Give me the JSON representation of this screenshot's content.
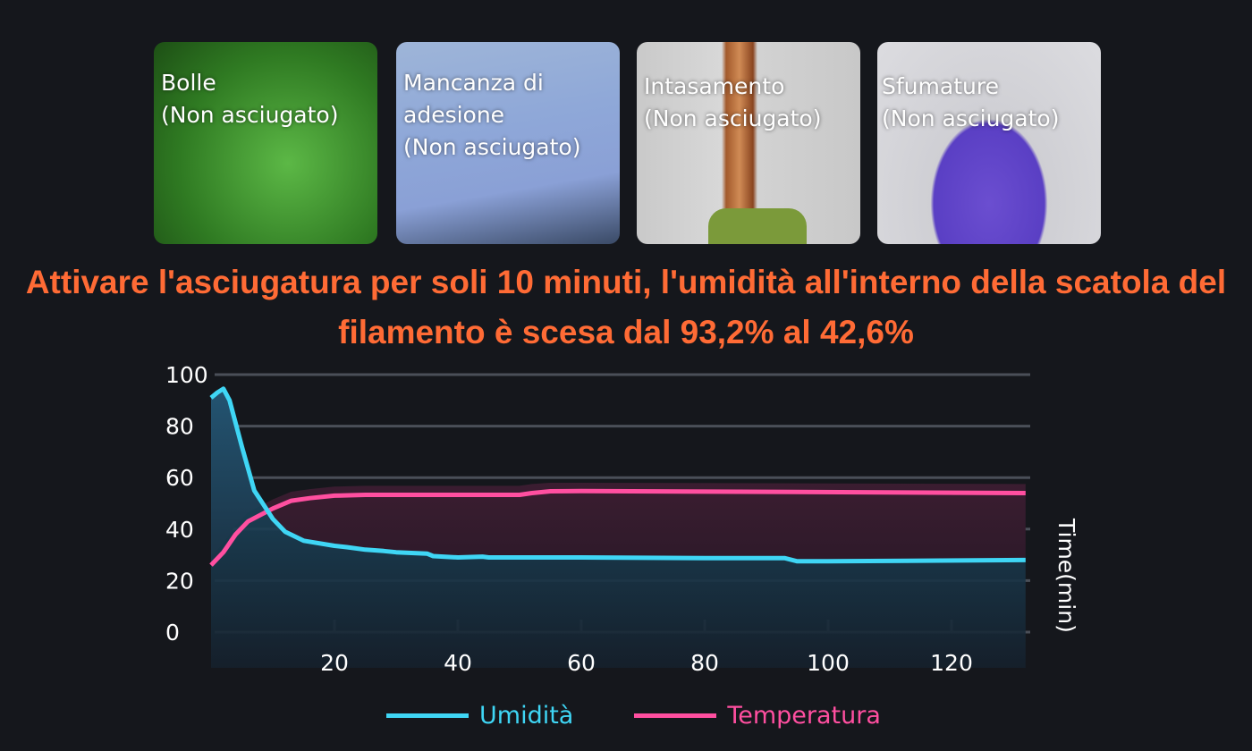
{
  "photos": [
    {
      "caption": "Bolle\n(Non asciugato)"
    },
    {
      "caption": "Mancanza di\nadesione\n(Non asciugato)"
    },
    {
      "caption": "Intasamento\n(Non asciugato)"
    },
    {
      "caption": "Sfumature\n(Non asciugato)"
    }
  ],
  "headline": "Attivare l'asciugatura per soli 10 minuti, l'umidità all'interno della scatola del filamento è scesa dal 93,2% al 42,6%",
  "chart_data": {
    "type": "area",
    "xlabel": "Time(min)",
    "ylabel": "",
    "xlim": [
      0,
      132
    ],
    "ylim": [
      0,
      100
    ],
    "xticks": [
      20,
      40,
      60,
      80,
      100,
      120
    ],
    "yticks": [
      0,
      20,
      40,
      60,
      80,
      100
    ],
    "grid": true,
    "legend": "bottom",
    "series": [
      {
        "name": "Umidità",
        "color": "#3fd6f5",
        "points": [
          [
            0,
            91
          ],
          [
            1,
            93
          ],
          [
            2,
            94.5
          ],
          [
            3,
            90
          ],
          [
            5,
            72
          ],
          [
            7,
            55
          ],
          [
            10,
            44
          ],
          [
            12,
            39
          ],
          [
            15,
            35.5
          ],
          [
            20,
            33.5
          ],
          [
            22,
            33
          ],
          [
            25,
            32
          ],
          [
            28,
            31.5
          ],
          [
            30,
            31
          ],
          [
            35,
            30.5
          ],
          [
            36,
            29.5
          ],
          [
            40,
            29
          ],
          [
            44,
            29.3
          ],
          [
            45,
            29
          ],
          [
            50,
            29
          ],
          [
            60,
            29
          ],
          [
            80,
            28.7
          ],
          [
            93,
            28.7
          ],
          [
            95,
            27.5
          ],
          [
            100,
            27.5
          ],
          [
            132,
            28
          ]
        ]
      },
      {
        "name": "Temperatura",
        "color": "#ff4fa0",
        "points": [
          [
            0,
            26
          ],
          [
            2,
            31
          ],
          [
            4,
            38
          ],
          [
            6,
            43
          ],
          [
            10,
            48
          ],
          [
            13,
            51
          ],
          [
            16,
            52
          ],
          [
            20,
            53
          ],
          [
            25,
            53.3
          ],
          [
            50,
            53.3
          ],
          [
            52,
            54
          ],
          [
            55,
            54.7
          ],
          [
            60,
            54.8
          ],
          [
            132,
            54
          ]
        ]
      }
    ]
  }
}
